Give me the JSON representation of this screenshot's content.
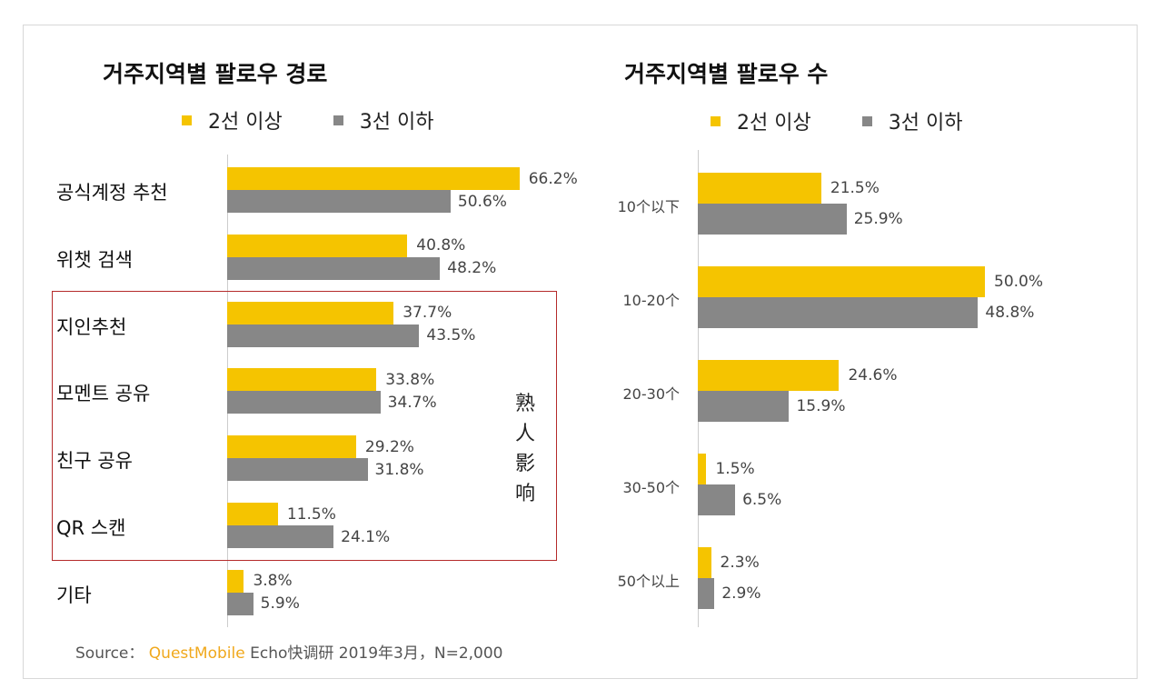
{
  "colors": {
    "series1": "#f5c400",
    "series2": "#878787",
    "box": "#b52a2a"
  },
  "annotation": "熟人影响",
  "source": {
    "prefix": "Source：",
    "brand": "QuestMobile",
    "rest": "Echo快调研 2019年3月，N=2,000"
  },
  "chart_data": [
    {
      "type": "bar",
      "orientation": "horizontal",
      "title": "거주지역별 팔로우 경로",
      "legend": "top",
      "categories": [
        "공식계정 추천",
        "위챗 검색",
        "지인추천",
        "모멘트 공유",
        "친구 공유",
        "QR 스캔",
        "기타"
      ],
      "series": [
        {
          "name": "2선 이상",
          "values": [
            66.2,
            40.8,
            37.7,
            33.8,
            29.2,
            11.5,
            3.8
          ]
        },
        {
          "name": "3선 이하",
          "values": [
            50.6,
            48.2,
            43.5,
            34.7,
            31.8,
            24.1,
            5.9
          ]
        }
      ],
      "unit": "%"
    },
    {
      "type": "bar",
      "orientation": "horizontal",
      "title": "거주지역별 팔로우 수",
      "legend": "top",
      "categories": [
        "10个以下",
        "10-20个",
        "20-30个",
        "30-50个",
        "50个以上"
      ],
      "series": [
        {
          "name": "2선 이상",
          "values": [
            21.5,
            50.0,
            24.6,
            1.5,
            2.3
          ]
        },
        {
          "name": "3선 이하",
          "values": [
            25.9,
            48.8,
            15.9,
            6.5,
            2.9
          ]
        }
      ],
      "unit": "%"
    }
  ]
}
